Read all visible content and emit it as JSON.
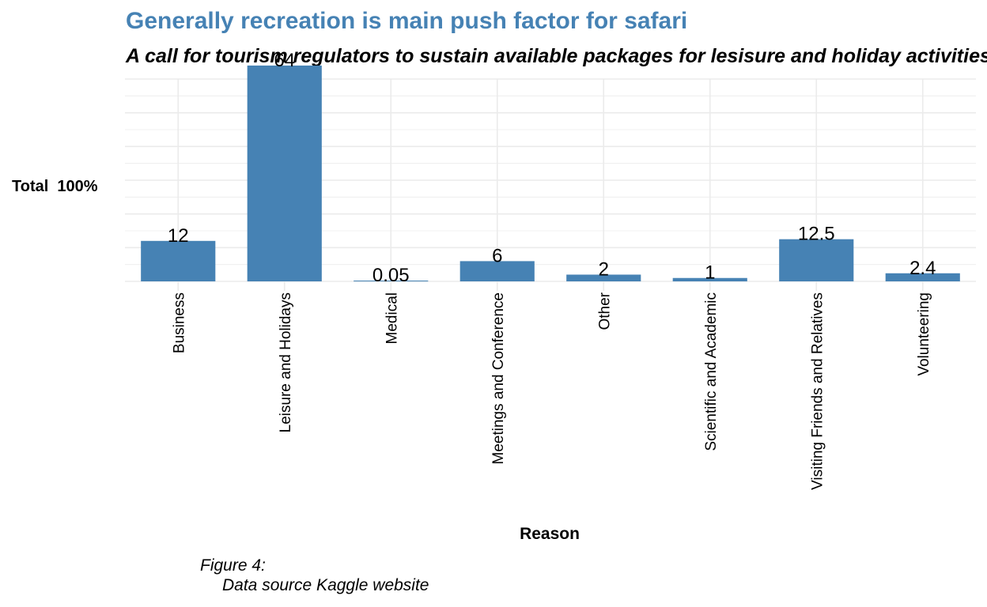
{
  "chart_data": {
    "type": "bar",
    "title": "Generally recreation is main push factor for safari",
    "subtitle": "A call for tourism regulators to sustain available packages for lesisure and holiday activities",
    "xlabel": "Reason",
    "ylabel": "Total  100%",
    "categories": [
      "Business",
      "Leisure and Holidays",
      "Medical",
      "Meetings and Conference",
      "Other",
      "Scientific and Academic",
      "Visiting Friends and Relatives",
      "Volunteering"
    ],
    "values": [
      12,
      64,
      0.05,
      6,
      2,
      1,
      12.5,
      2.4
    ],
    "value_labels": [
      "12",
      "64",
      "0.05",
      "6",
      "2",
      "1",
      "12.5",
      "2.4"
    ],
    "ylim": [
      0,
      60
    ],
    "grid": true,
    "y_tick_labels_shown": false,
    "bar_color": "#4682b4",
    "grid_color": "#ebebeb"
  },
  "caption": {
    "line1": "Figure 4:",
    "line2": "Data source Kaggle website"
  }
}
